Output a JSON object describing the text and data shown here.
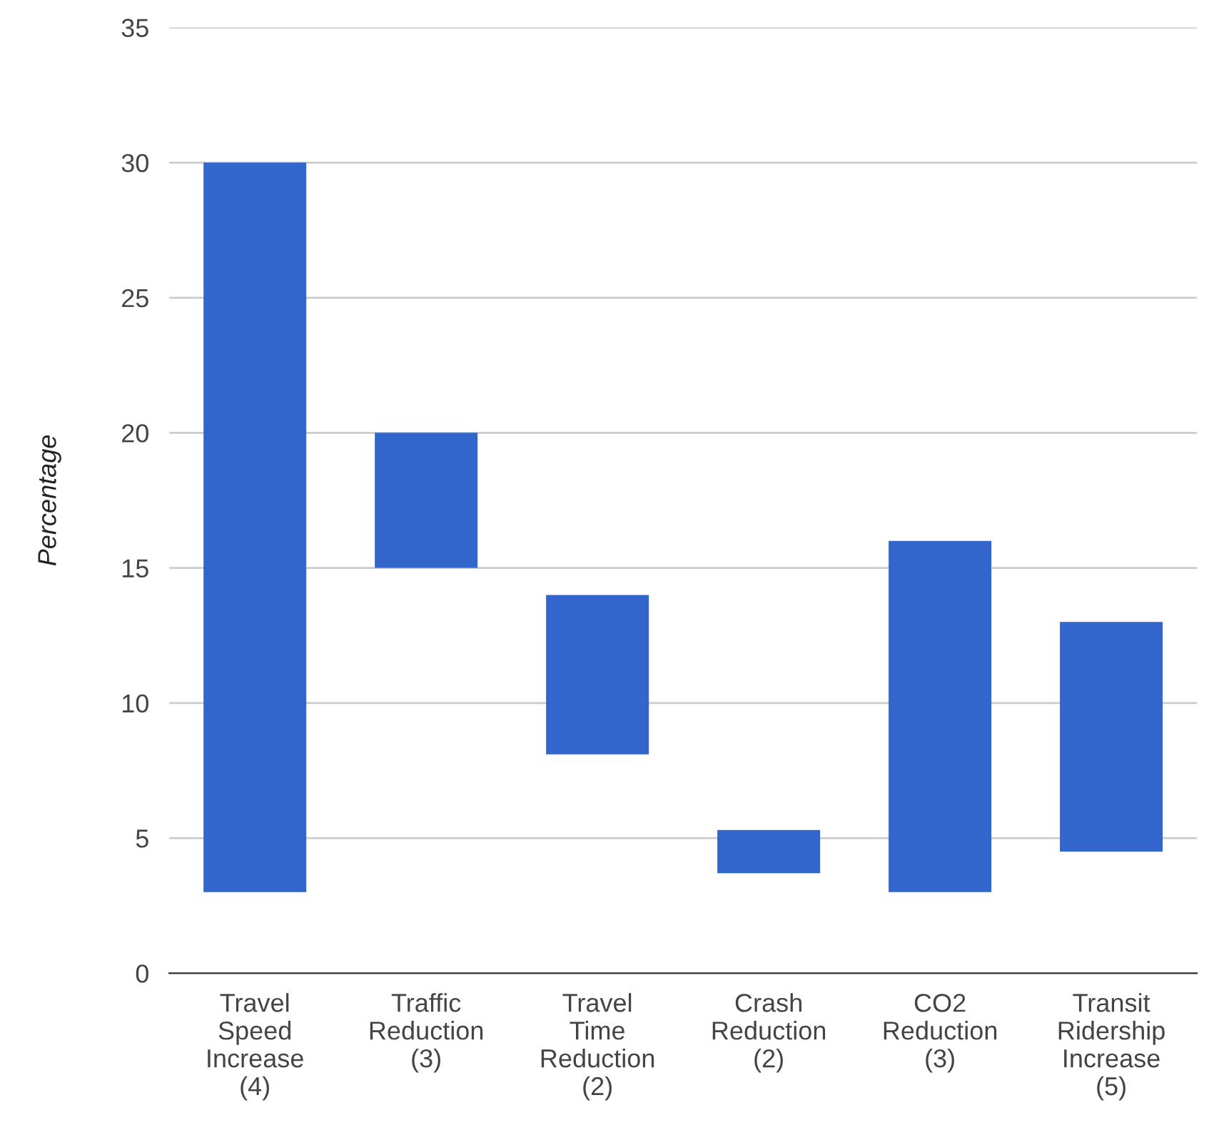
{
  "chart_data": {
    "type": "bar",
    "ylabel": "Percentage",
    "categories": [
      "Travel\nSpeed\nIncrease\n(4)",
      "Traffic\nReduction\n(3)",
      "Travel\nTime\nReduction\n(2)",
      "Crash\nReduction\n(2)",
      "CO2\nReduction\n(3)",
      "Transit\nRidership\nIncrease\n(5)"
    ],
    "base": [
      3,
      15,
      8.1,
      3.7,
      3,
      4.5
    ],
    "values": [
      27,
      5,
      5.9,
      1.6,
      13,
      8.5
    ],
    "color": "#3366cc",
    "ylim": [
      0,
      35
    ],
    "yticks": [
      0,
      5,
      10,
      15,
      20,
      25,
      30,
      35
    ],
    "grid": "y"
  }
}
